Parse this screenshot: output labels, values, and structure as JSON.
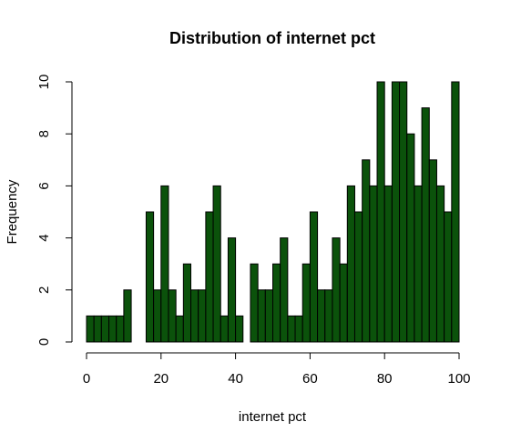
{
  "chart_data": {
    "type": "bar",
    "subtype": "histogram",
    "title": "Distribution of internet pct",
    "xlabel": "internet pct",
    "ylabel": "Frequency",
    "xlim": [
      0,
      100
    ],
    "ylim": [
      0,
      10
    ],
    "xticks": [
      0,
      20,
      40,
      60,
      80,
      100
    ],
    "yticks": [
      0,
      2,
      4,
      6,
      8,
      10
    ],
    "bin_width": 2,
    "bin_start": 0,
    "bar_color": "#0b520b",
    "border_color": "#000000",
    "grid": false,
    "values": [
      1,
      1,
      1,
      1,
      1,
      2,
      0,
      0,
      5,
      2,
      6,
      2,
      1,
      3,
      2,
      2,
      5,
      6,
      1,
      4,
      1,
      0,
      3,
      2,
      2,
      3,
      4,
      1,
      1,
      3,
      5,
      2,
      2,
      4,
      3,
      6,
      5,
      7,
      6,
      10,
      6,
      10,
      10,
      8,
      6,
      9,
      7,
      6,
      5,
      10
    ]
  }
}
